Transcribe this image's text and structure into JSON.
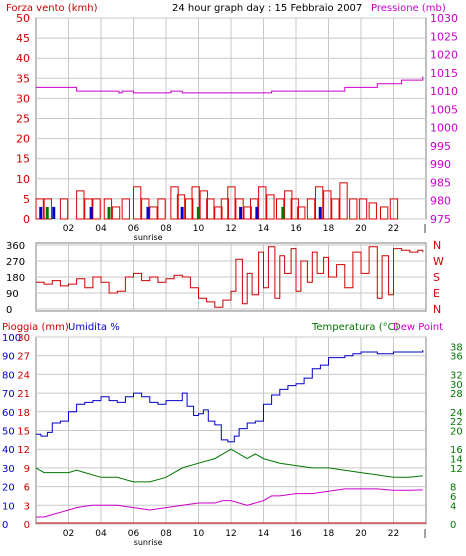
{
  "header": {
    "title": "24 hour graph day : 15 Febbraio 2007",
    "wind_label": "Forza vento (kmh)",
    "pressure_label": "Pressione (mb)"
  },
  "direction_panel": {
    "left_ticks": [
      "360",
      "270",
      "180",
      "90",
      "0"
    ],
    "right_ticks": [
      "N",
      "W",
      "S",
      "E",
      "N"
    ]
  },
  "bottom_panel": {
    "rain_label": "Pioggia (mm)",
    "humidity_label": "Umidita %",
    "temp_label": "Temperatura (°C)",
    "dew_label": "Dew Point"
  },
  "x_axis": {
    "ticks": [
      "02",
      "04",
      "06",
      "08",
      "10",
      "12",
      "14",
      "16",
      "18",
      "20",
      "22"
    ],
    "end_tick": "|",
    "sunrise_label": "sunrise",
    "sunrise_hour": 6.9
  },
  "colors": {
    "frame": "#808080",
    "grid": "#c8c8c8",
    "wind_axis": "#cc0000",
    "pressure": "#cc00cc",
    "humidity": "#0000cc",
    "temperature": "#007700",
    "dew": "#cc00cc",
    "direction": "#cc0000",
    "gust": "#dd0000"
  },
  "chart_data": [
    {
      "type": "line",
      "name": "wind_pressure",
      "ylabel_left": "Forza vento (kmh)",
      "ylabel_right": "Pressione (mb)",
      "ylim_left": [
        0,
        50
      ],
      "ylim_right": [
        975,
        1030
      ],
      "left_ticks": [
        0,
        5,
        10,
        15,
        20,
        25,
        30,
        35,
        40,
        45,
        50
      ],
      "right_ticks": [
        975,
        980,
        985,
        990,
        995,
        1000,
        1005,
        1010,
        1015,
        1020,
        1025,
        1030
      ],
      "xlim": [
        0,
        24
      ],
      "pressure": [
        [
          0,
          1011
        ],
        [
          2,
          1011
        ],
        [
          2.5,
          1010
        ],
        [
          5,
          1010
        ],
        [
          5.1,
          1009.5
        ],
        [
          5.3,
          1010
        ],
        [
          5.7,
          1010
        ],
        [
          6,
          1009.5
        ],
        [
          8,
          1009.5
        ],
        [
          8.3,
          1010
        ],
        [
          8.8,
          1010
        ],
        [
          9,
          1009.5
        ],
        [
          14,
          1009.5
        ],
        [
          14.5,
          1010
        ],
        [
          18.5,
          1010
        ],
        [
          19,
          1011
        ],
        [
          20.5,
          1011
        ],
        [
          21,
          1012
        ],
        [
          22,
          1012
        ],
        [
          22.5,
          1013
        ],
        [
          23.5,
          1013
        ],
        [
          23.8,
          1014
        ]
      ],
      "gust_bars": [
        [
          0,
          5
        ],
        [
          0.5,
          5
        ],
        [
          1.5,
          5
        ],
        [
          2.5,
          7
        ],
        [
          3,
          5
        ],
        [
          3.5,
          5
        ],
        [
          4.2,
          5
        ],
        [
          4.7,
          3
        ],
        [
          5.3,
          5
        ],
        [
          6,
          8
        ],
        [
          6.5,
          5
        ],
        [
          7,
          3
        ],
        [
          7.5,
          5
        ],
        [
          8.3,
          8
        ],
        [
          8.7,
          6
        ],
        [
          9.2,
          5
        ],
        [
          9.6,
          8
        ],
        [
          10.1,
          7
        ],
        [
          10.5,
          5
        ],
        [
          11,
          3
        ],
        [
          11.4,
          5
        ],
        [
          11.8,
          8
        ],
        [
          12.3,
          5
        ],
        [
          12.8,
          3
        ],
        [
          13.2,
          5
        ],
        [
          13.7,
          8
        ],
        [
          14.2,
          6
        ],
        [
          14.8,
          5
        ],
        [
          15.3,
          7
        ],
        [
          15.7,
          5
        ],
        [
          16.1,
          3
        ],
        [
          16.7,
          5
        ],
        [
          17.2,
          8
        ],
        [
          17.7,
          7
        ],
        [
          18.2,
          5
        ],
        [
          18.7,
          9
        ],
        [
          19.3,
          5
        ],
        [
          19.9,
          5
        ],
        [
          20.5,
          4
        ],
        [
          21.2,
          3
        ],
        [
          21.8,
          5
        ]
      ],
      "avg_bars": [
        [
          0.2,
          3
        ],
        [
          0.6,
          3
        ],
        [
          1,
          3
        ],
        [
          3.3,
          3
        ],
        [
          4.4,
          3
        ],
        [
          6.8,
          3
        ],
        [
          8.9,
          3
        ],
        [
          9.9,
          3
        ],
        [
          12.5,
          3
        ],
        [
          13.5,
          3
        ],
        [
          15.1,
          3
        ],
        [
          17.4,
          3
        ]
      ]
    },
    {
      "type": "line",
      "name": "wind_direction",
      "ylim": [
        0,
        360
      ],
      "left_ticks": [
        0,
        90,
        180,
        270,
        360
      ],
      "xlim": [
        0,
        24
      ],
      "direction": [
        [
          0,
          150
        ],
        [
          0.5,
          140
        ],
        [
          1,
          160
        ],
        [
          1.5,
          130
        ],
        [
          2,
          140
        ],
        [
          2.5,
          170
        ],
        [
          3,
          120
        ],
        [
          3.5,
          180
        ],
        [
          4,
          150
        ],
        [
          4.5,
          90
        ],
        [
          5,
          100
        ],
        [
          5.5,
          180
        ],
        [
          6,
          200
        ],
        [
          6.5,
          160
        ],
        [
          7,
          180
        ],
        [
          7.5,
          150
        ],
        [
          8,
          170
        ],
        [
          8.5,
          190
        ],
        [
          9,
          180
        ],
        [
          9.5,
          120
        ],
        [
          10,
          60
        ],
        [
          10.5,
          40
        ],
        [
          11,
          10
        ],
        [
          11.5,
          50
        ],
        [
          12,
          100
        ],
        [
          12.3,
          280
        ],
        [
          12.7,
          30
        ],
        [
          13,
          200
        ],
        [
          13.3,
          80
        ],
        [
          13.7,
          320
        ],
        [
          14,
          120
        ],
        [
          14.3,
          350
        ],
        [
          14.7,
          60
        ],
        [
          15,
          300
        ],
        [
          15.3,
          200
        ],
        [
          15.7,
          340
        ],
        [
          16,
          100
        ],
        [
          16.3,
          270
        ],
        [
          16.7,
          150
        ],
        [
          17,
          320
        ],
        [
          17.3,
          200
        ],
        [
          17.7,
          290
        ],
        [
          18,
          180
        ],
        [
          18.5,
          250
        ],
        [
          19,
          120
        ],
        [
          19.5,
          320
        ],
        [
          20,
          200
        ],
        [
          20.5,
          350
        ],
        [
          21,
          60
        ],
        [
          21.3,
          300
        ],
        [
          21.7,
          80
        ],
        [
          22,
          340
        ],
        [
          22.5,
          330
        ],
        [
          23,
          320
        ],
        [
          23.5,
          330
        ],
        [
          23.8,
          320
        ]
      ]
    },
    {
      "type": "line",
      "name": "rain_humidity_temperature",
      "ylabel_left": "Pioggia (mm)",
      "ylabel_left2": "Umidita %",
      "ylabel_right": "Temperatura (°C)",
      "ylabel_right2": "Dew Point",
      "ylim_left": [
        0,
        30
      ],
      "ylim_left2": [
        0,
        100
      ],
      "ylim_right": [
        0,
        40
      ],
      "rain_ticks": [
        0,
        3,
        6,
        9,
        12,
        15,
        18,
        21,
        24,
        27,
        30
      ],
      "humidity_ticks": [
        0,
        10,
        20,
        30,
        40,
        50,
        60,
        70,
        80,
        90,
        100
      ],
      "temp_ticks": [
        0,
        2,
        4,
        6,
        8,
        10,
        12,
        14,
        16,
        18,
        20,
        22,
        24,
        26,
        28,
        30,
        32,
        34,
        36,
        38
      ],
      "xlim": [
        0,
        24
      ],
      "humidity": [
        [
          0,
          48
        ],
        [
          0.3,
          47
        ],
        [
          0.7,
          49
        ],
        [
          1,
          54
        ],
        [
          1.5,
          55
        ],
        [
          2,
          60
        ],
        [
          2.5,
          64
        ],
        [
          3,
          65
        ],
        [
          3.5,
          66
        ],
        [
          4,
          68
        ],
        [
          4.5,
          66
        ],
        [
          5,
          65
        ],
        [
          5.5,
          68
        ],
        [
          6,
          70
        ],
        [
          6.5,
          68
        ],
        [
          7,
          65
        ],
        [
          7.5,
          64
        ],
        [
          8,
          66
        ],
        [
          8.5,
          66
        ],
        [
          9,
          70
        ],
        [
          9.3,
          63
        ],
        [
          9.7,
          58
        ],
        [
          10,
          59
        ],
        [
          10.3,
          61
        ],
        [
          10.6,
          55
        ],
        [
          11,
          53
        ],
        [
          11.4,
          45
        ],
        [
          11.8,
          44
        ],
        [
          12.2,
          47
        ],
        [
          12.5,
          51
        ],
        [
          13,
          54
        ],
        [
          13.5,
          55
        ],
        [
          14,
          64
        ],
        [
          14.5,
          69
        ],
        [
          15,
          72
        ],
        [
          15.5,
          74
        ],
        [
          16,
          75
        ],
        [
          16.5,
          78
        ],
        [
          17,
          83
        ],
        [
          17.5,
          85
        ],
        [
          18,
          89
        ],
        [
          18.5,
          89
        ],
        [
          19,
          90
        ],
        [
          19.5,
          91
        ],
        [
          20,
          92
        ],
        [
          21,
          91
        ],
        [
          22,
          92
        ],
        [
          23,
          92
        ],
        [
          23.8,
          93
        ]
      ],
      "temperature": [
        [
          0,
          12
        ],
        [
          0.5,
          11
        ],
        [
          1,
          11
        ],
        [
          1.5,
          11
        ],
        [
          2,
          11
        ],
        [
          2.5,
          11.5
        ],
        [
          3,
          11
        ],
        [
          4,
          10
        ],
        [
          5,
          10
        ],
        [
          6,
          9
        ],
        [
          7,
          9
        ],
        [
          8,
          10
        ],
        [
          9,
          12
        ],
        [
          10,
          13
        ],
        [
          11,
          14
        ],
        [
          11.5,
          15
        ],
        [
          12,
          16
        ],
        [
          12.5,
          15
        ],
        [
          13,
          14
        ],
        [
          13.5,
          15
        ],
        [
          14,
          14
        ],
        [
          15,
          13
        ],
        [
          16,
          12.5
        ],
        [
          17,
          12
        ],
        [
          18,
          12
        ],
        [
          19,
          11.5
        ],
        [
          20,
          11
        ],
        [
          21,
          10.5
        ],
        [
          22,
          10
        ],
        [
          23,
          10
        ],
        [
          23.8,
          10.3
        ]
      ],
      "dewpoint": [
        [
          0,
          1.5
        ],
        [
          0.5,
          1.5
        ],
        [
          1,
          2
        ],
        [
          1.5,
          2.5
        ],
        [
          2,
          3
        ],
        [
          2.5,
          3.5
        ],
        [
          3,
          3.8
        ],
        [
          3.5,
          4
        ],
        [
          4,
          4
        ],
        [
          4.5,
          4
        ],
        [
          5,
          4
        ],
        [
          6,
          3.5
        ],
        [
          7,
          3
        ],
        [
          8,
          3.5
        ],
        [
          9,
          4
        ],
        [
          10,
          4.5
        ],
        [
          11,
          4.5
        ],
        [
          11.5,
          5
        ],
        [
          12,
          5
        ],
        [
          13,
          4
        ],
        [
          14,
          5
        ],
        [
          14.5,
          6
        ],
        [
          15,
          6
        ],
        [
          16,
          6.5
        ],
        [
          17,
          6.5
        ],
        [
          18,
          7
        ],
        [
          19,
          7.5
        ],
        [
          20,
          7.5
        ],
        [
          21,
          7.5
        ],
        [
          22,
          7.2
        ],
        [
          23,
          7.2
        ],
        [
          23.8,
          7.3
        ]
      ],
      "rain": [
        [
          0,
          0
        ],
        [
          24,
          0
        ]
      ]
    }
  ]
}
